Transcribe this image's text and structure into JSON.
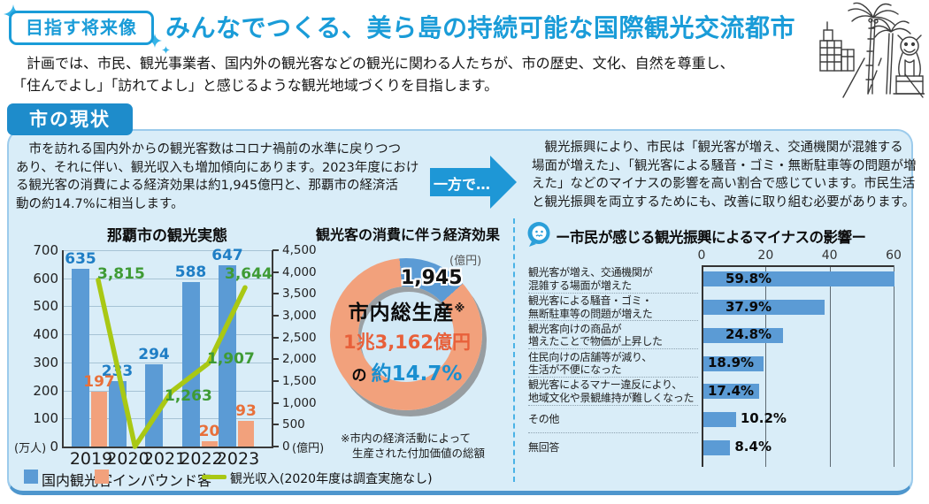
{
  "header": {
    "badge_label": "目指す将来像",
    "title": "みんなでつくる、美ら島の持続可能な国際観光交流都市",
    "intro_lines": [
      "　計画では、市民、観光事業者、国内外の観光客などの観光に関わる人たちが、市の歴史、文化、自然を尊重し、",
      "「住んでよし」「訪れてよし」と感じるような観光地域づくりを目指します。"
    ]
  },
  "section": {
    "heading": "市の現状",
    "left_text_lines": [
      "　市を訪れる国内外からの観光客数はコロナ禍前の水準に戻りつつ",
      "あり、それに伴い、観光収入も増加傾向にあります。2023年度におけ",
      "る観光客の消費による経済効果は約1,945億円と、那覇市の経済活",
      "動の約14.7%に相当します。"
    ],
    "arrow_label": "一方で…",
    "right_text_lines": [
      "　観光振興により、市民は「観光客が増え、交通機関が混雑する",
      "場面が増えた」、「観光客による騒音・ゴミ・無断駐車等の問題が増",
      "えた」などのマイナスの影響を高い割合で感じています。市民生活",
      "と観光振興を両立するためにも、改善に取り組む必要があります。"
    ]
  },
  "chart_data": [
    {
      "type": "bar+line",
      "title": "那覇市の観光実態",
      "categories": [
        "2019",
        "2020",
        "2021",
        "2022",
        "2023"
      ],
      "series": [
        {
          "name": "国内観光客",
          "type": "bar",
          "axis": "left",
          "color": "#5b9bd5",
          "values": [
            635,
            233,
            294,
            588,
            647
          ]
        },
        {
          "name": "インバウンド客",
          "type": "bar",
          "axis": "left",
          "color": "#f2a17c",
          "values": [
            197,
            null,
            null,
            20,
            93
          ]
        },
        {
          "name": "観光収入(2020年度は調査実施なし)",
          "type": "line",
          "axis": "right",
          "color": "#a9c814",
          "values": [
            3815,
            0,
            1263,
            1907,
            3644
          ],
          "labels": [
            "3,815",
            null,
            "1,263",
            "1,907",
            "3,644"
          ]
        }
      ],
      "left_axis": {
        "unit": "(万人)",
        "min": 0,
        "max": 700,
        "ticks": [
          700,
          600,
          500,
          400,
          300,
          200,
          100,
          0
        ]
      },
      "right_axis": {
        "unit": "(億円)",
        "min": 0,
        "max": 4500,
        "ticks": [
          "4,500",
          "4,000",
          "3,500",
          "3,000",
          "2,500",
          "2,000",
          "1,500",
          "1,000",
          "500",
          "0"
        ]
      },
      "grid": true,
      "legend_position": "bottom"
    },
    {
      "type": "pie",
      "title": "観光客の消費に伴う経済効果",
      "unit": "(億円)",
      "slices": [
        {
          "label": "1,945",
          "value": 1945,
          "color": "#5b9bd5"
        },
        {
          "label": "",
          "value": 11217,
          "color": "#f2a17c"
        }
      ],
      "center": {
        "line1": "市内総生産",
        "note_mark": "※",
        "line2": "1兆3,162億円",
        "line3_prefix": "の",
        "line3_value": "約14.7%"
      },
      "footnote_lines": [
        "※市内の経済活動によって",
        "生産された付加価値の総額"
      ]
    },
    {
      "type": "bar",
      "orientation": "horizontal",
      "title": "ー市民が感じる観光振興によるマイナスの影響ー",
      "categories": [
        [
          "観光客が増え、交通機関が",
          "混雑する場面が増えた"
        ],
        [
          "観光客による騒音・ゴミ・",
          "無断駐車等の問題が増えた"
        ],
        [
          "観光客向けの商品が",
          "増えたことで物価が上昇した"
        ],
        [
          "住民向けの店舗等が減り、",
          "生活が不便になった"
        ],
        [
          "観光客によるマナー違反により、",
          "地域文化や景観維持が難しくなった"
        ],
        [
          "その他"
        ],
        [
          "無回答"
        ]
      ],
      "values": [
        59.8,
        37.9,
        24.8,
        18.9,
        17.4,
        10.2,
        8.4
      ],
      "labels": [
        "59.8%",
        "37.9%",
        "24.8%",
        "18.9%",
        "17.4%",
        "10.2%",
        "8.4%"
      ],
      "xlim": [
        0,
        60
      ],
      "ticks": [
        0,
        20,
        40,
        60
      ],
      "bar_color": "#5b9bd5"
    }
  ],
  "colors": {
    "accent_blue": "#1a9cd8",
    "heading_bg": "#1e8ccb",
    "panel_bg": "#d9edf8",
    "panel_border_bottom": "#4e96cd",
    "bar_blue": "#5b9bd5",
    "bar_orange": "#f2a17c",
    "line_green": "#a9c814",
    "value_label_blue": "#1f7ec5",
    "value_label_orange": "#e8703a",
    "value_label_green": "#3f9b35",
    "money_orange": "#e8603a",
    "percent_blue": "#1a8fd0",
    "divider_blue": "#49b2e6",
    "arrow_blue": "#1e97d6"
  }
}
